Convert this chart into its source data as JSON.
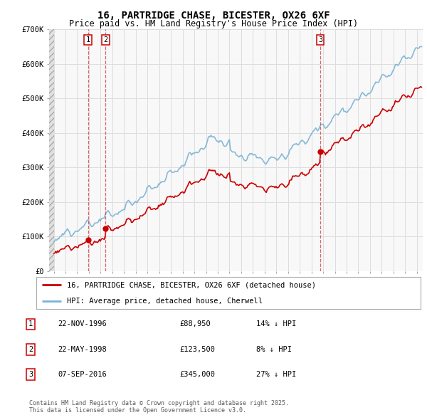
{
  "title": "16, PARTRIDGE CHASE, BICESTER, OX26 6XF",
  "subtitle": "Price paid vs. HM Land Registry's House Price Index (HPI)",
  "ylim": [
    0,
    700000
  ],
  "yticks": [
    0,
    100000,
    200000,
    300000,
    400000,
    500000,
    600000,
    700000
  ],
  "ytick_labels": [
    "£0",
    "£100K",
    "£200K",
    "£300K",
    "£400K",
    "£500K",
    "£600K",
    "£700K"
  ],
  "sale_year_vals": [
    1996.917,
    1998.417,
    2016.75
  ],
  "sale_prices": [
    88950,
    123500,
    345000
  ],
  "sale_labels": [
    "1",
    "2",
    "3"
  ],
  "legend_entries": [
    "16, PARTRIDGE CHASE, BICESTER, OX26 6XF (detached house)",
    "HPI: Average price, detached house, Cherwell"
  ],
  "table_rows": [
    [
      "1",
      "22-NOV-1996",
      "£88,950",
      "14% ↓ HPI"
    ],
    [
      "2",
      "22-MAY-1998",
      "£123,500",
      "8% ↓ HPI"
    ],
    [
      "3",
      "07-SEP-2016",
      "£345,000",
      "27% ↓ HPI"
    ]
  ],
  "footer": "Contains HM Land Registry data © Crown copyright and database right 2025.\nThis data is licensed under the Open Government Licence v3.0.",
  "line_color_red": "#cc0000",
  "line_color_blue": "#7ab3d4",
  "grid_color": "#dddddd",
  "plot_bg_color": "#f8f8f8",
  "xlim_left": 1993.6,
  "xlim_right": 2025.5
}
